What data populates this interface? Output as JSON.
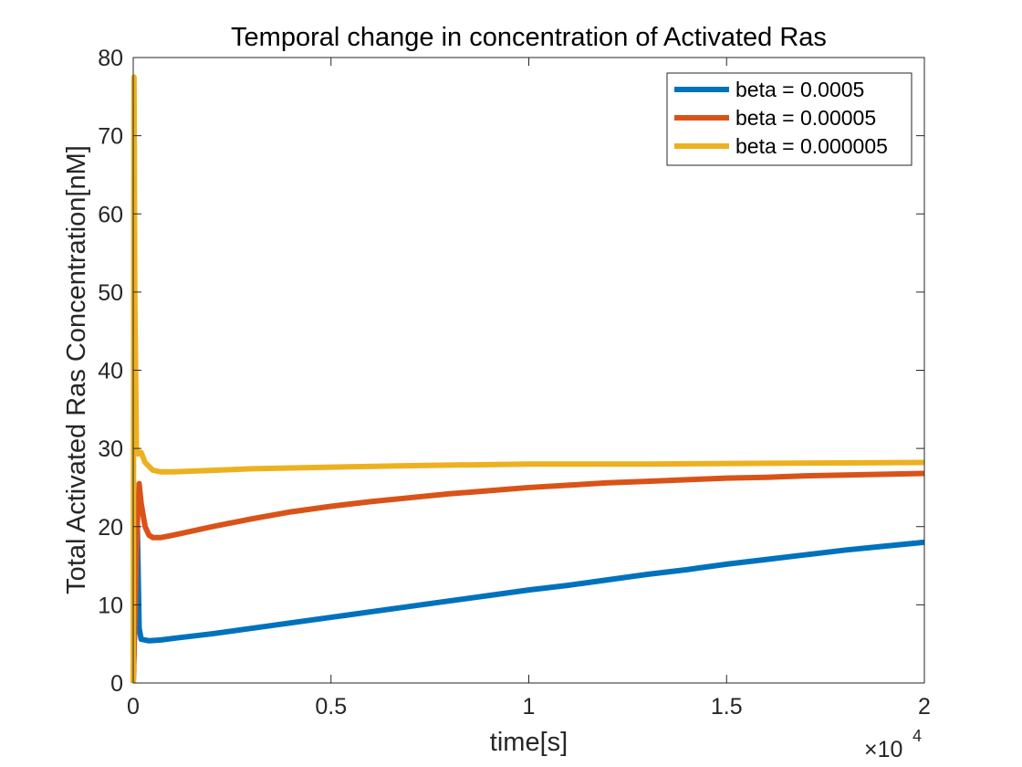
{
  "chart_data": {
    "type": "line",
    "title": "Temporal change in concentration of Activated Ras",
    "xlabel": "time[s]",
    "ylabel": "Total Activated Ras Concentration[nM]",
    "x_exponent_label": "×10",
    "x_exponent_power": "4",
    "xlim": [
      0,
      20000
    ],
    "ylim": [
      0,
      80
    ],
    "x_ticks": [
      0,
      5000,
      10000,
      15000,
      20000
    ],
    "x_tick_labels": [
      "0",
      "0.5",
      "1",
      "1.5",
      "2"
    ],
    "y_ticks": [
      0,
      10,
      20,
      30,
      40,
      50,
      60,
      70,
      80
    ],
    "y_tick_labels": [
      "0",
      "10",
      "20",
      "30",
      "40",
      "50",
      "60",
      "70",
      "80"
    ],
    "grid": false,
    "legend_position": "top-right",
    "series": [
      {
        "name": "beta = 0.0005",
        "color": "#0072BD",
        "x": [
          0,
          100,
          150,
          200,
          400,
          700,
          1000,
          2000,
          3000,
          4000,
          5000,
          6000,
          7000,
          8000,
          9000,
          10000,
          11000,
          12000,
          13000,
          14000,
          15000,
          16000,
          17000,
          18000,
          19000,
          20000
        ],
        "y": [
          0,
          21,
          7,
          5.6,
          5.4,
          5.5,
          5.7,
          6.3,
          7.0,
          7.7,
          8.4,
          9.1,
          9.8,
          10.5,
          11.2,
          11.9,
          12.5,
          13.2,
          13.9,
          14.5,
          15.2,
          15.8,
          16.4,
          17.0,
          17.5,
          18.0
        ]
      },
      {
        "name": "beta = 0.00005",
        "color": "#D95319",
        "x": [
          0,
          100,
          150,
          200,
          300,
          400,
          500,
          700,
          1000,
          2000,
          3000,
          4000,
          5000,
          6000,
          7000,
          8000,
          9000,
          10000,
          11000,
          12000,
          13000,
          14000,
          15000,
          16000,
          17000,
          18000,
          19000,
          20000
        ],
        "y": [
          0,
          20,
          25.5,
          23,
          20,
          18.9,
          18.6,
          18.6,
          18.9,
          20.0,
          21.0,
          21.9,
          22.6,
          23.2,
          23.7,
          24.2,
          24.6,
          25.0,
          25.3,
          25.6,
          25.8,
          26.0,
          26.2,
          26.3,
          26.5,
          26.6,
          26.7,
          26.8
        ]
      },
      {
        "name": "beta = 0.000005",
        "color": "#EDB120",
        "x": [
          0,
          20,
          40,
          80,
          120,
          200,
          300,
          500,
          700,
          1000,
          2000,
          3000,
          5000,
          7000,
          10000,
          13000,
          16000,
          20000
        ],
        "y": [
          0,
          77.5,
          50,
          30,
          29.3,
          29.5,
          28.2,
          27.2,
          27.0,
          27.0,
          27.2,
          27.4,
          27.6,
          27.8,
          28.0,
          28.0,
          28.1,
          28.2
        ]
      }
    ]
  }
}
